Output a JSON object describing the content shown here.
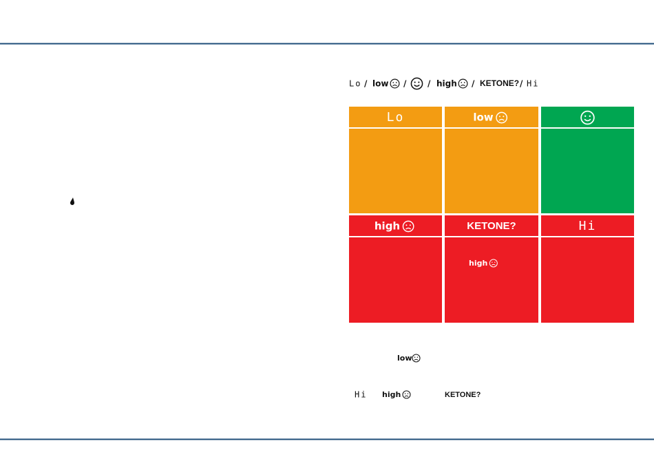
{
  "legend": {
    "lo": "Lo",
    "low": "low",
    "high": "high",
    "ketone": "KETONE?",
    "hi": "Hi",
    "separator": "/"
  },
  "grid": {
    "cells": [
      {
        "label": "Lo",
        "color": "#f39c12"
      },
      {
        "label": "low",
        "color": "#f39c12"
      },
      {
        "color": "#00a651"
      },
      {
        "label": "high",
        "color": "#ed1c24"
      },
      {
        "label": "KETONE?",
        "color": "#ed1c24",
        "note": "high"
      },
      {
        "label": "Hi",
        "color": "#ed1c24"
      }
    ]
  },
  "notes": {
    "low": "low",
    "hi": "Hi",
    "high": "high",
    "ketone": "KETONE?"
  }
}
